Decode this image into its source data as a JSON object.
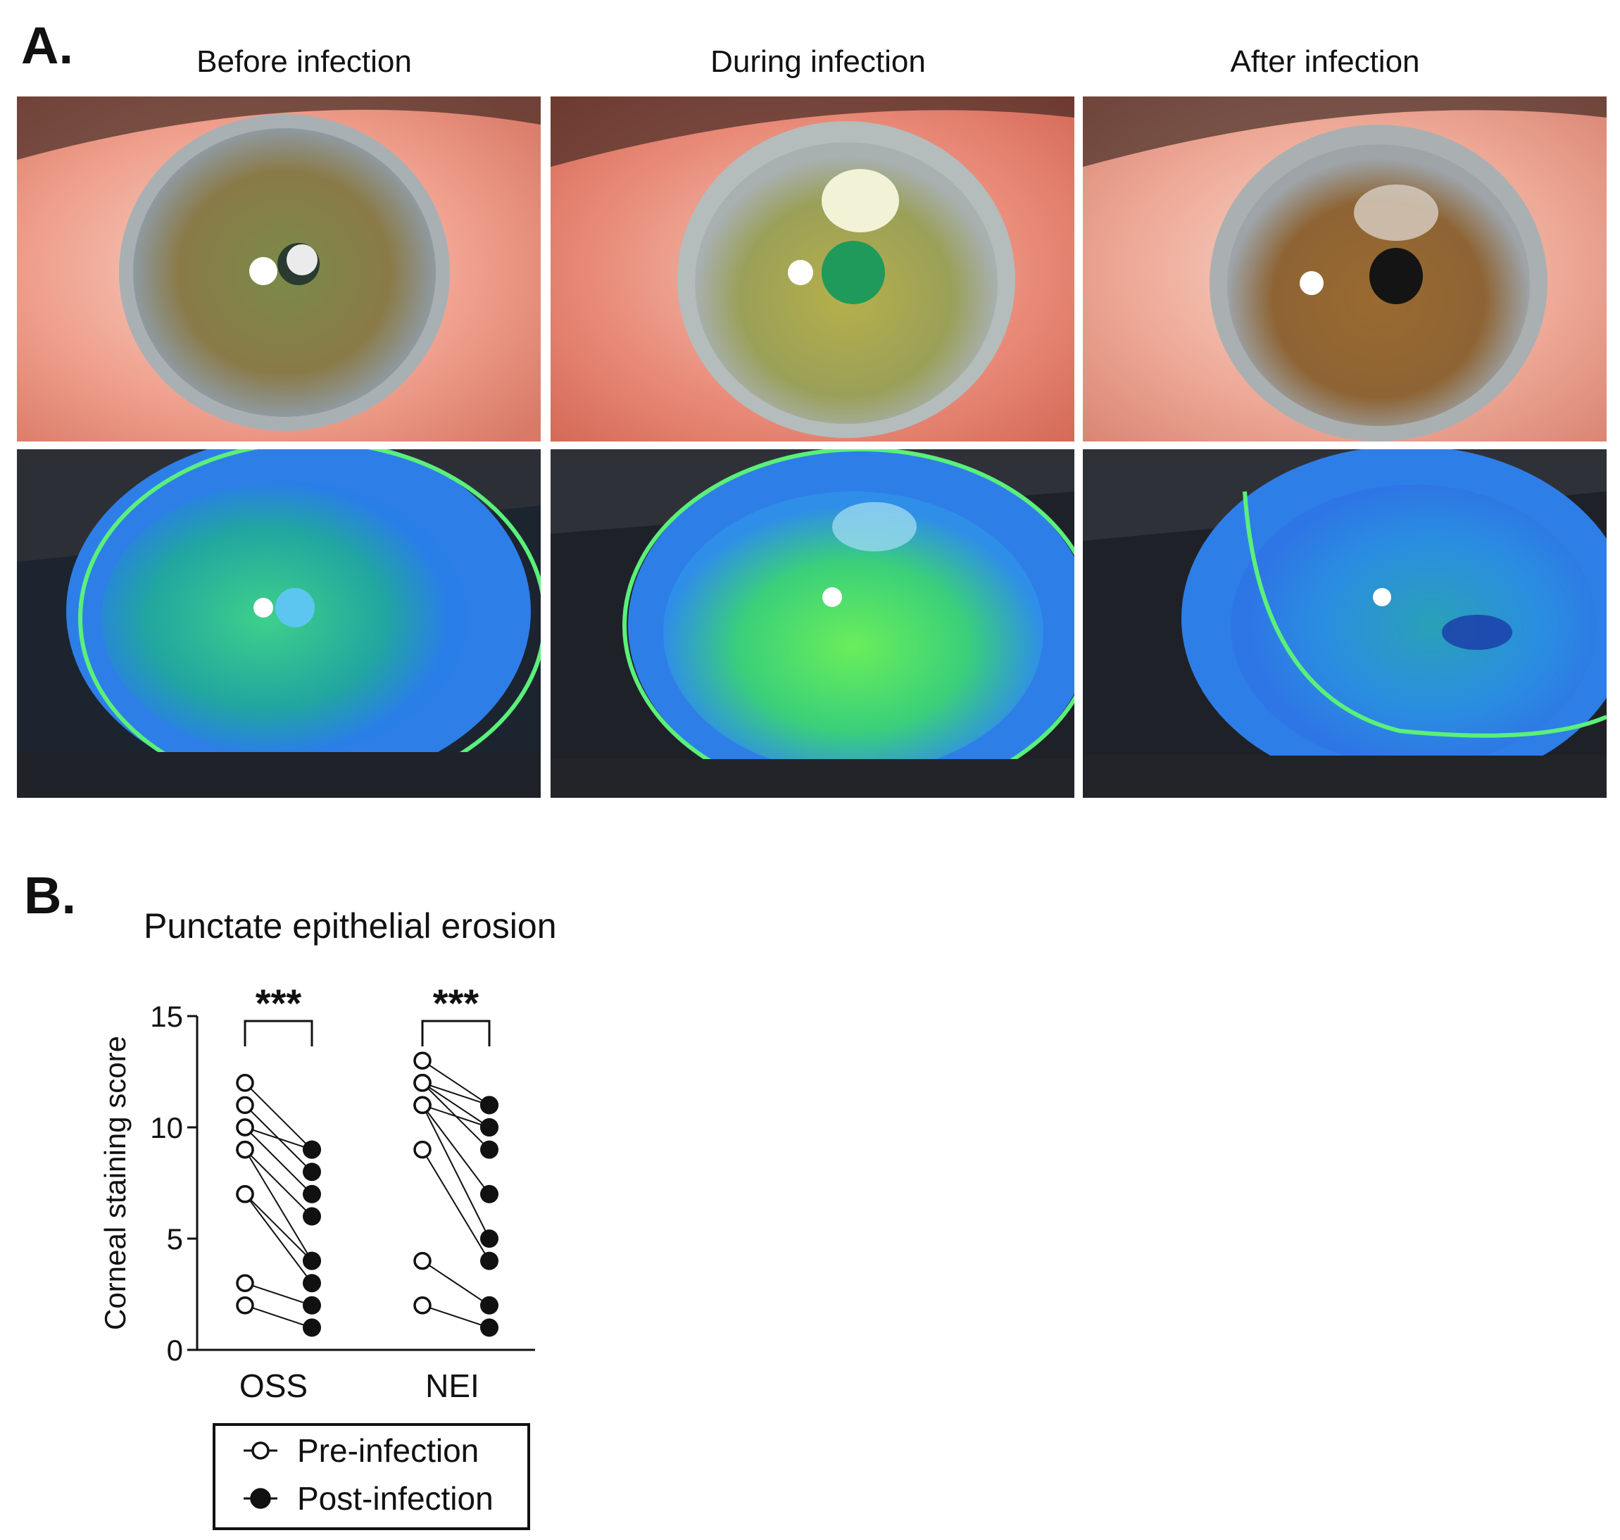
{
  "panel_a": {
    "letter": "A.",
    "columns": [
      {
        "title": "Before infection"
      },
      {
        "title": "During infection"
      },
      {
        "title": "After infection"
      }
    ],
    "colors": {
      "sclera_red": "#e89a8a",
      "iris_brown": "#8a6a3c",
      "fluor_blue": "#2e7fe8",
      "fluor_green": "#4fd86a"
    }
  },
  "panel_b": {
    "letter": "B.",
    "title": "Punctate epithelial erosion"
  },
  "chart_data": {
    "type": "scatter",
    "subtype": "paired before-after",
    "title": "Punctate epithelial erosion",
    "xlabel": "",
    "ylabel": "Corneal staining score",
    "ylim": [
      0,
      15
    ],
    "yticks": [
      "0",
      "5",
      "10",
      "15"
    ],
    "categories": [
      "OSS",
      "NEI"
    ],
    "significance": [
      "***",
      "***"
    ],
    "legend": {
      "placement": "bottom",
      "entries": [
        "Pre-infection",
        "Post-infection"
      ]
    },
    "series": [
      {
        "name": "Pre-infection",
        "marker": "open-circle"
      },
      {
        "name": "Post-infection",
        "marker": "filled-circle"
      }
    ],
    "pairs": {
      "OSS": [
        [
          12,
          9
        ],
        [
          11,
          8
        ],
        [
          10,
          9
        ],
        [
          10,
          7
        ],
        [
          9,
          6
        ],
        [
          9,
          4
        ],
        [
          7,
          3
        ],
        [
          7,
          4
        ],
        [
          3,
          2
        ],
        [
          2,
          1
        ]
      ],
      "NEI": [
        [
          13,
          11
        ],
        [
          12,
          11
        ],
        [
          12,
          10
        ],
        [
          12,
          9
        ],
        [
          11,
          10
        ],
        [
          11,
          7
        ],
        [
          11,
          5
        ],
        [
          9,
          4
        ],
        [
          4,
          2
        ],
        [
          2,
          1
        ]
      ]
    },
    "grid": false
  }
}
